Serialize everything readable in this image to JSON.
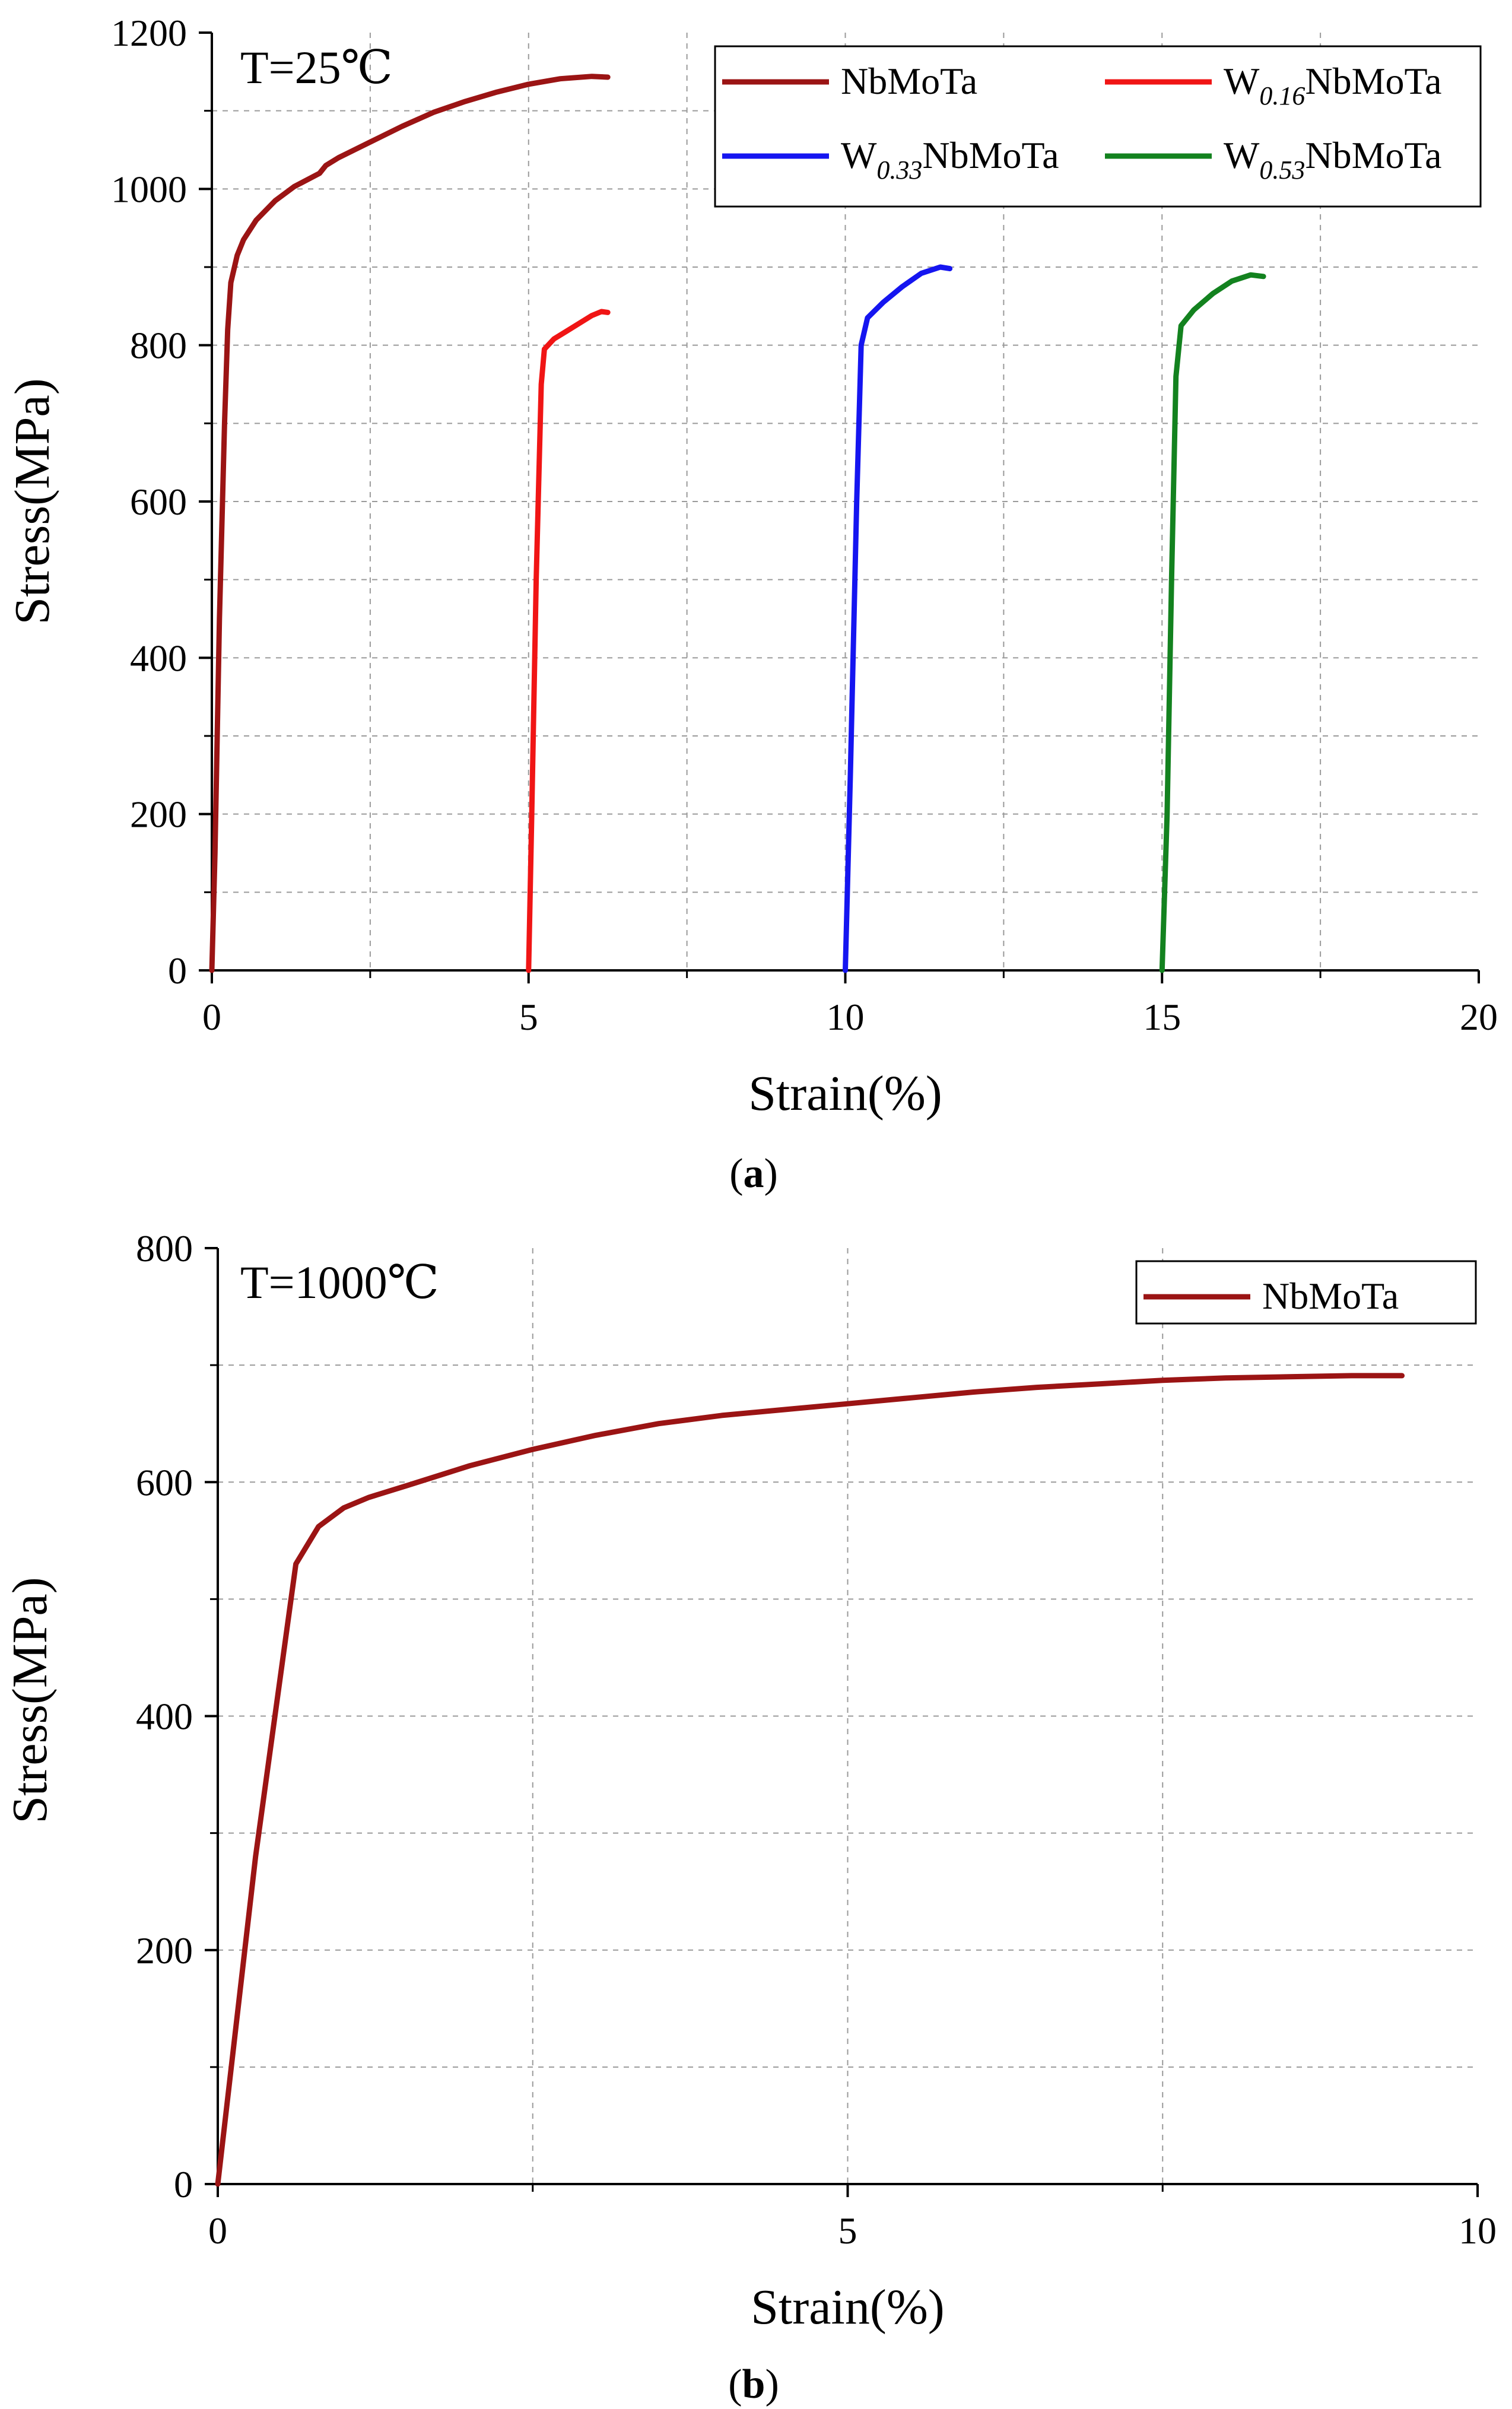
{
  "chart_data": [
    {
      "type": "line",
      "panel_label": "a",
      "temperature_label": "T=25℃",
      "xlabel": "Strain(%)",
      "ylabel": "Stress(MPa)",
      "xlim": [
        0,
        20
      ],
      "ylim": [
        0,
        1200
      ],
      "x_ticks": [
        "0",
        "5",
        "10",
        "15",
        "20"
      ],
      "y_ticks": [
        "0",
        "200",
        "400",
        "600",
        "800",
        "1000",
        "1200"
      ],
      "grid": true,
      "legend_position": "top-right",
      "series": [
        {
          "name": "NbMoTa",
          "color": "#9b1414",
          "x": [
            0,
            0.05,
            0.12,
            0.2,
            0.25,
            0.3,
            0.4,
            0.5,
            0.7,
            1.0,
            1.3,
            1.7,
            1.8,
            2.0,
            2.5,
            3.0,
            3.5,
            4.0,
            4.5,
            5.0,
            5.5,
            6.0,
            6.25
          ],
          "y": [
            0,
            150,
            450,
            700,
            820,
            880,
            915,
            935,
            960,
            985,
            1003,
            1020,
            1030,
            1040,
            1060,
            1080,
            1098,
            1112,
            1124,
            1134,
            1141,
            1144,
            1143
          ]
        },
        {
          "name": "W0.16NbMoTa",
          "name_base": "W",
          "name_sub": "0.16",
          "name_rest": "NbMoTa",
          "color": "#f01515",
          "x": [
            5.0,
            5.05,
            5.12,
            5.2,
            5.25,
            5.4,
            5.6,
            5.8,
            6.0,
            6.15,
            6.25
          ],
          "y": [
            0,
            200,
            500,
            750,
            795,
            808,
            818,
            828,
            838,
            843,
            842
          ]
        },
        {
          "name": "W0.33NbMoTa",
          "name_base": "W",
          "name_sub": "0.33",
          "name_rest": "NbMoTa",
          "color": "#1515f0",
          "x": [
            10.0,
            10.08,
            10.18,
            10.25,
            10.35,
            10.6,
            10.9,
            11.2,
            11.5,
            11.65
          ],
          "y": [
            0,
            250,
            600,
            800,
            835,
            855,
            875,
            892,
            900,
            898
          ]
        },
        {
          "name": "W0.53NbMoTa",
          "name_base": "W",
          "name_sub": "0.53",
          "name_rest": "NbMoTa",
          "color": "#13821f",
          "x": [
            15.0,
            15.08,
            15.15,
            15.22,
            15.3,
            15.5,
            15.8,
            16.1,
            16.4,
            16.6
          ],
          "y": [
            0,
            200,
            500,
            760,
            825,
            845,
            866,
            882,
            890,
            888
          ]
        }
      ]
    },
    {
      "type": "line",
      "panel_label": "b",
      "temperature_label": "T=1000℃",
      "xlabel": "Strain(%)",
      "ylabel": "Stress(MPa)",
      "xlim": [
        0,
        10
      ],
      "ylim": [
        0,
        800
      ],
      "x_ticks": [
        "0",
        "5",
        "10"
      ],
      "y_ticks": [
        "0",
        "200",
        "400",
        "600",
        "800"
      ],
      "grid": true,
      "legend_position": "top-right",
      "series": [
        {
          "name": "NbMoTa",
          "color": "#9b1414",
          "x": [
            0,
            0.3,
            0.62,
            0.8,
            1.0,
            1.2,
            1.5,
            2.0,
            2.5,
            3.0,
            3.5,
            4.0,
            4.5,
            5.0,
            5.5,
            6.0,
            6.5,
            7.0,
            7.5,
            8.0,
            8.5,
            9.0,
            9.4
          ],
          "y": [
            0,
            280,
            530,
            562,
            578,
            587,
            597,
            614,
            628,
            640,
            650,
            657,
            662,
            667,
            672,
            677,
            681,
            684,
            687,
            689,
            690,
            691,
            691
          ]
        }
      ]
    }
  ]
}
